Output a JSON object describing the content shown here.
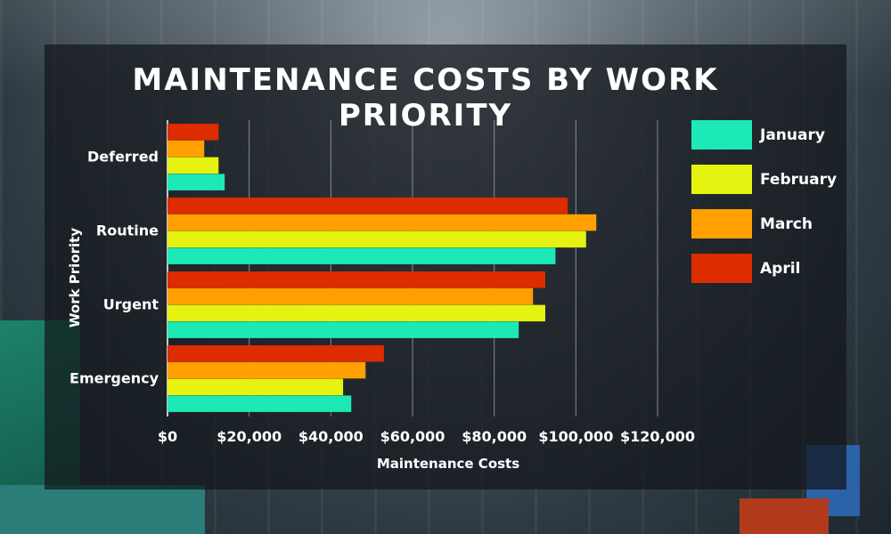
{
  "chart_data": {
    "type": "bar",
    "orientation": "horizontal",
    "title": "MAINTENANCE COSTS BY WORK PRIORITY",
    "xlabel": "Maintenance Costs",
    "ylabel": "Work Priority",
    "categories": [
      "Deferred",
      "Routine",
      "Urgent",
      "Emergency"
    ],
    "series": [
      {
        "name": "January",
        "color": "#1de9b6",
        "values": [
          14000,
          95000,
          86000,
          45000
        ]
      },
      {
        "name": "February",
        "color": "#e6f20f",
        "values": [
          12500,
          102500,
          92500,
          43000
        ]
      },
      {
        "name": "March",
        "color": "#ffa000",
        "values": [
          9000,
          105000,
          89500,
          48500
        ]
      },
      {
        "name": "April",
        "color": "#dd2c00",
        "values": [
          12500,
          98000,
          92500,
          53000
        ]
      }
    ],
    "xlim": [
      0,
      120000
    ],
    "xticks": [
      0,
      20000,
      40000,
      60000,
      80000,
      100000,
      120000
    ],
    "xtick_labels": [
      "$0",
      "$20,000",
      "$40,000",
      "$60,000",
      "$80,000",
      "$100,000",
      "$120,000"
    ],
    "grid": true,
    "legend_position": "top-right"
  }
}
